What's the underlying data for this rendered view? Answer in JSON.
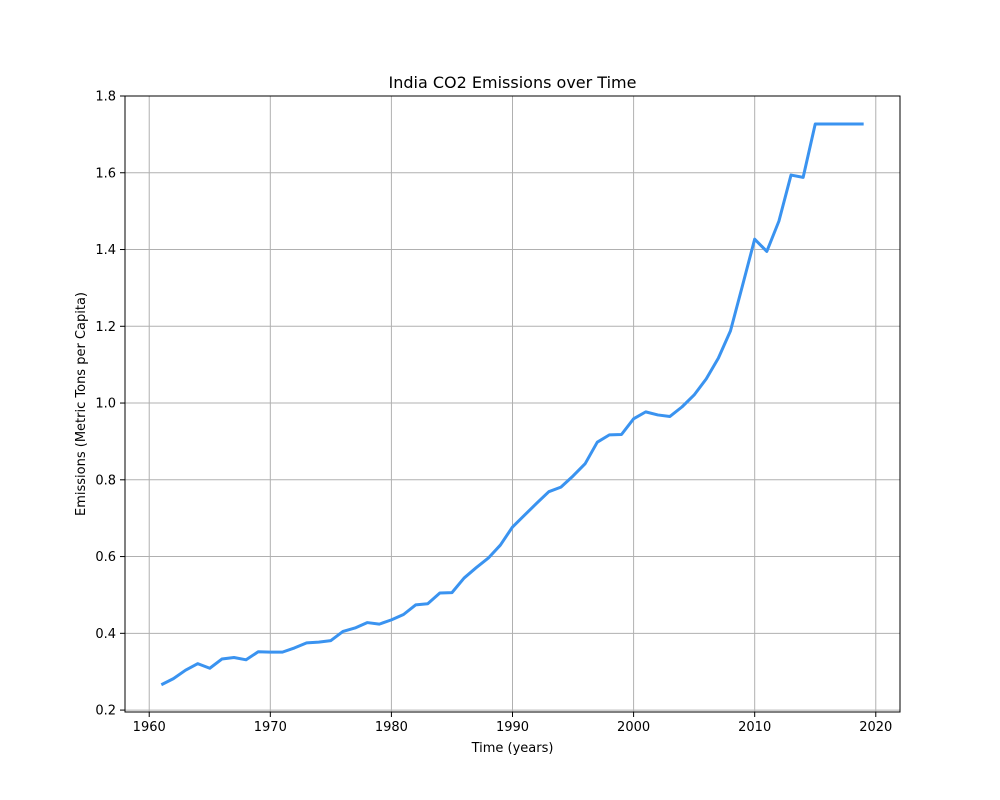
{
  "chart_data": {
    "type": "line",
    "title": "India CO2 Emissions over Time",
    "xlabel": "Time (years)",
    "ylabel": "Emissions (Metric Tons per Capita)",
    "xlim": [
      1958,
      2022
    ],
    "ylim": [
      0.195,
      1.8
    ],
    "xticks": [
      1960,
      1970,
      1980,
      1990,
      2000,
      2010,
      2020
    ],
    "xtick_labels": [
      "1960",
      "1970",
      "1980",
      "1990",
      "2000",
      "2010",
      "2020"
    ],
    "yticks": [
      0.2,
      0.4,
      0.6,
      0.8,
      1.0,
      1.2,
      1.4,
      1.6,
      1.8
    ],
    "ytick_labels": [
      "0.2",
      "0.4",
      "0.6",
      "0.8",
      "1.0",
      "1.2",
      "1.4",
      "1.6",
      "1.8"
    ],
    "grid": true,
    "legend": "none",
    "series": [
      {
        "color": "#3a93f0",
        "x": [
          1961,
          1962,
          1963,
          1964,
          1965,
          1966,
          1967,
          1968,
          1969,
          1970,
          1971,
          1972,
          1973,
          1974,
          1975,
          1976,
          1977,
          1978,
          1979,
          1980,
          1981,
          1982,
          1983,
          1984,
          1985,
          1986,
          1987,
          1988,
          1989,
          1990,
          1991,
          1992,
          1993,
          1994,
          1995,
          1996,
          1997,
          1998,
          1999,
          2000,
          2001,
          2002,
          2003,
          2004,
          2005,
          2006,
          2007,
          2008,
          2009,
          2010,
          2011,
          2012,
          2013,
          2014,
          2015,
          2016,
          2017,
          2018,
          2019
        ],
        "y": [
          0.266,
          0.282,
          0.304,
          0.321,
          0.309,
          0.333,
          0.337,
          0.331,
          0.352,
          0.351,
          0.351,
          0.362,
          0.375,
          0.377,
          0.381,
          0.405,
          0.414,
          0.428,
          0.424,
          0.435,
          0.449,
          0.474,
          0.477,
          0.505,
          0.506,
          0.544,
          0.571,
          0.596,
          0.63,
          0.677,
          0.708,
          0.739,
          0.769,
          0.781,
          0.81,
          0.842,
          0.898,
          0.917,
          0.918,
          0.959,
          0.977,
          0.969,
          0.965,
          0.99,
          1.021,
          1.063,
          1.117,
          1.188,
          1.307,
          1.427,
          1.395,
          1.474,
          1.594,
          1.588,
          1.727,
          1.727,
          1.727,
          1.727,
          1.727
        ]
      }
    ]
  }
}
